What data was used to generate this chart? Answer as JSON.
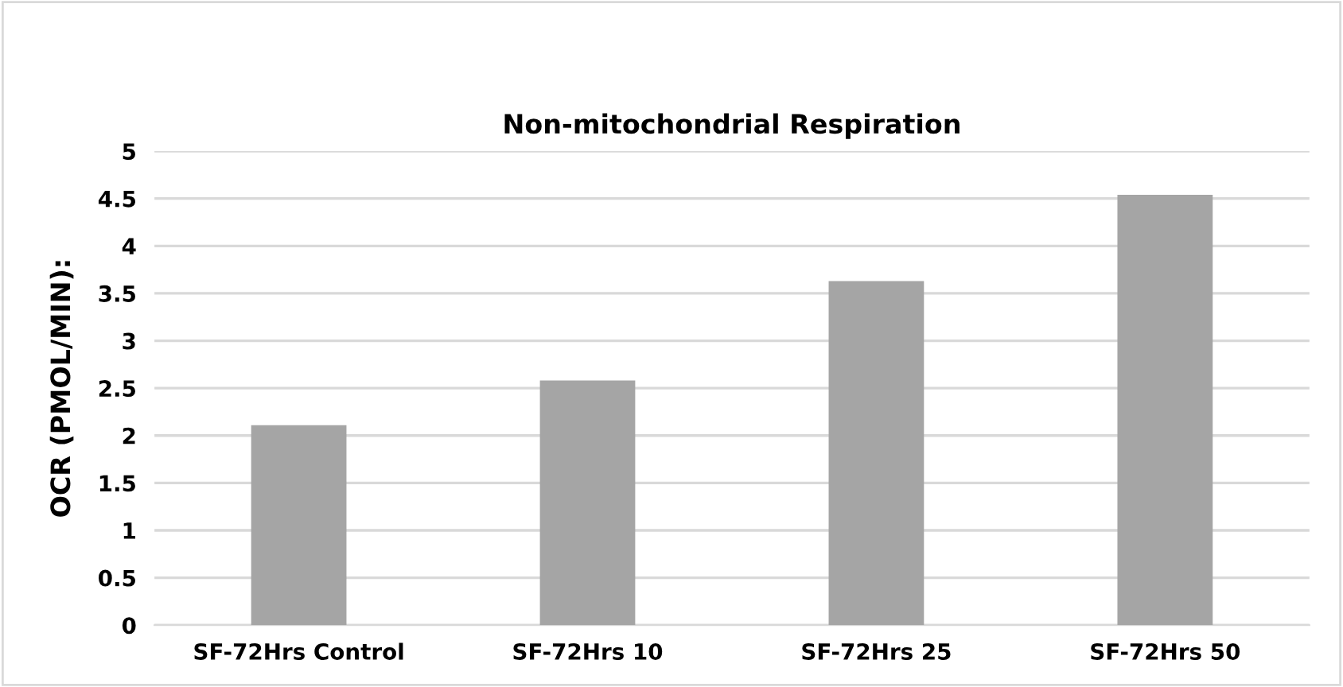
{
  "chart_data": {
    "type": "bar",
    "title": "Non-mitochondrial Respiration",
    "ylabel": "OCR (PMOL/MIN):",
    "categories": [
      "SF-72Hrs Control",
      "SF-72Hrs 10",
      "SF-72Hrs 25",
      "SF-72Hrs 50"
    ],
    "values": [
      2.11,
      2.58,
      3.63,
      4.54
    ],
    "color": "#a5a5a5",
    "ylim": [
      0,
      5
    ],
    "yticks": [
      0,
      0.5,
      1,
      1.5,
      2,
      2.5,
      3,
      3.5,
      4,
      4.5,
      5
    ],
    "grid": "y"
  }
}
